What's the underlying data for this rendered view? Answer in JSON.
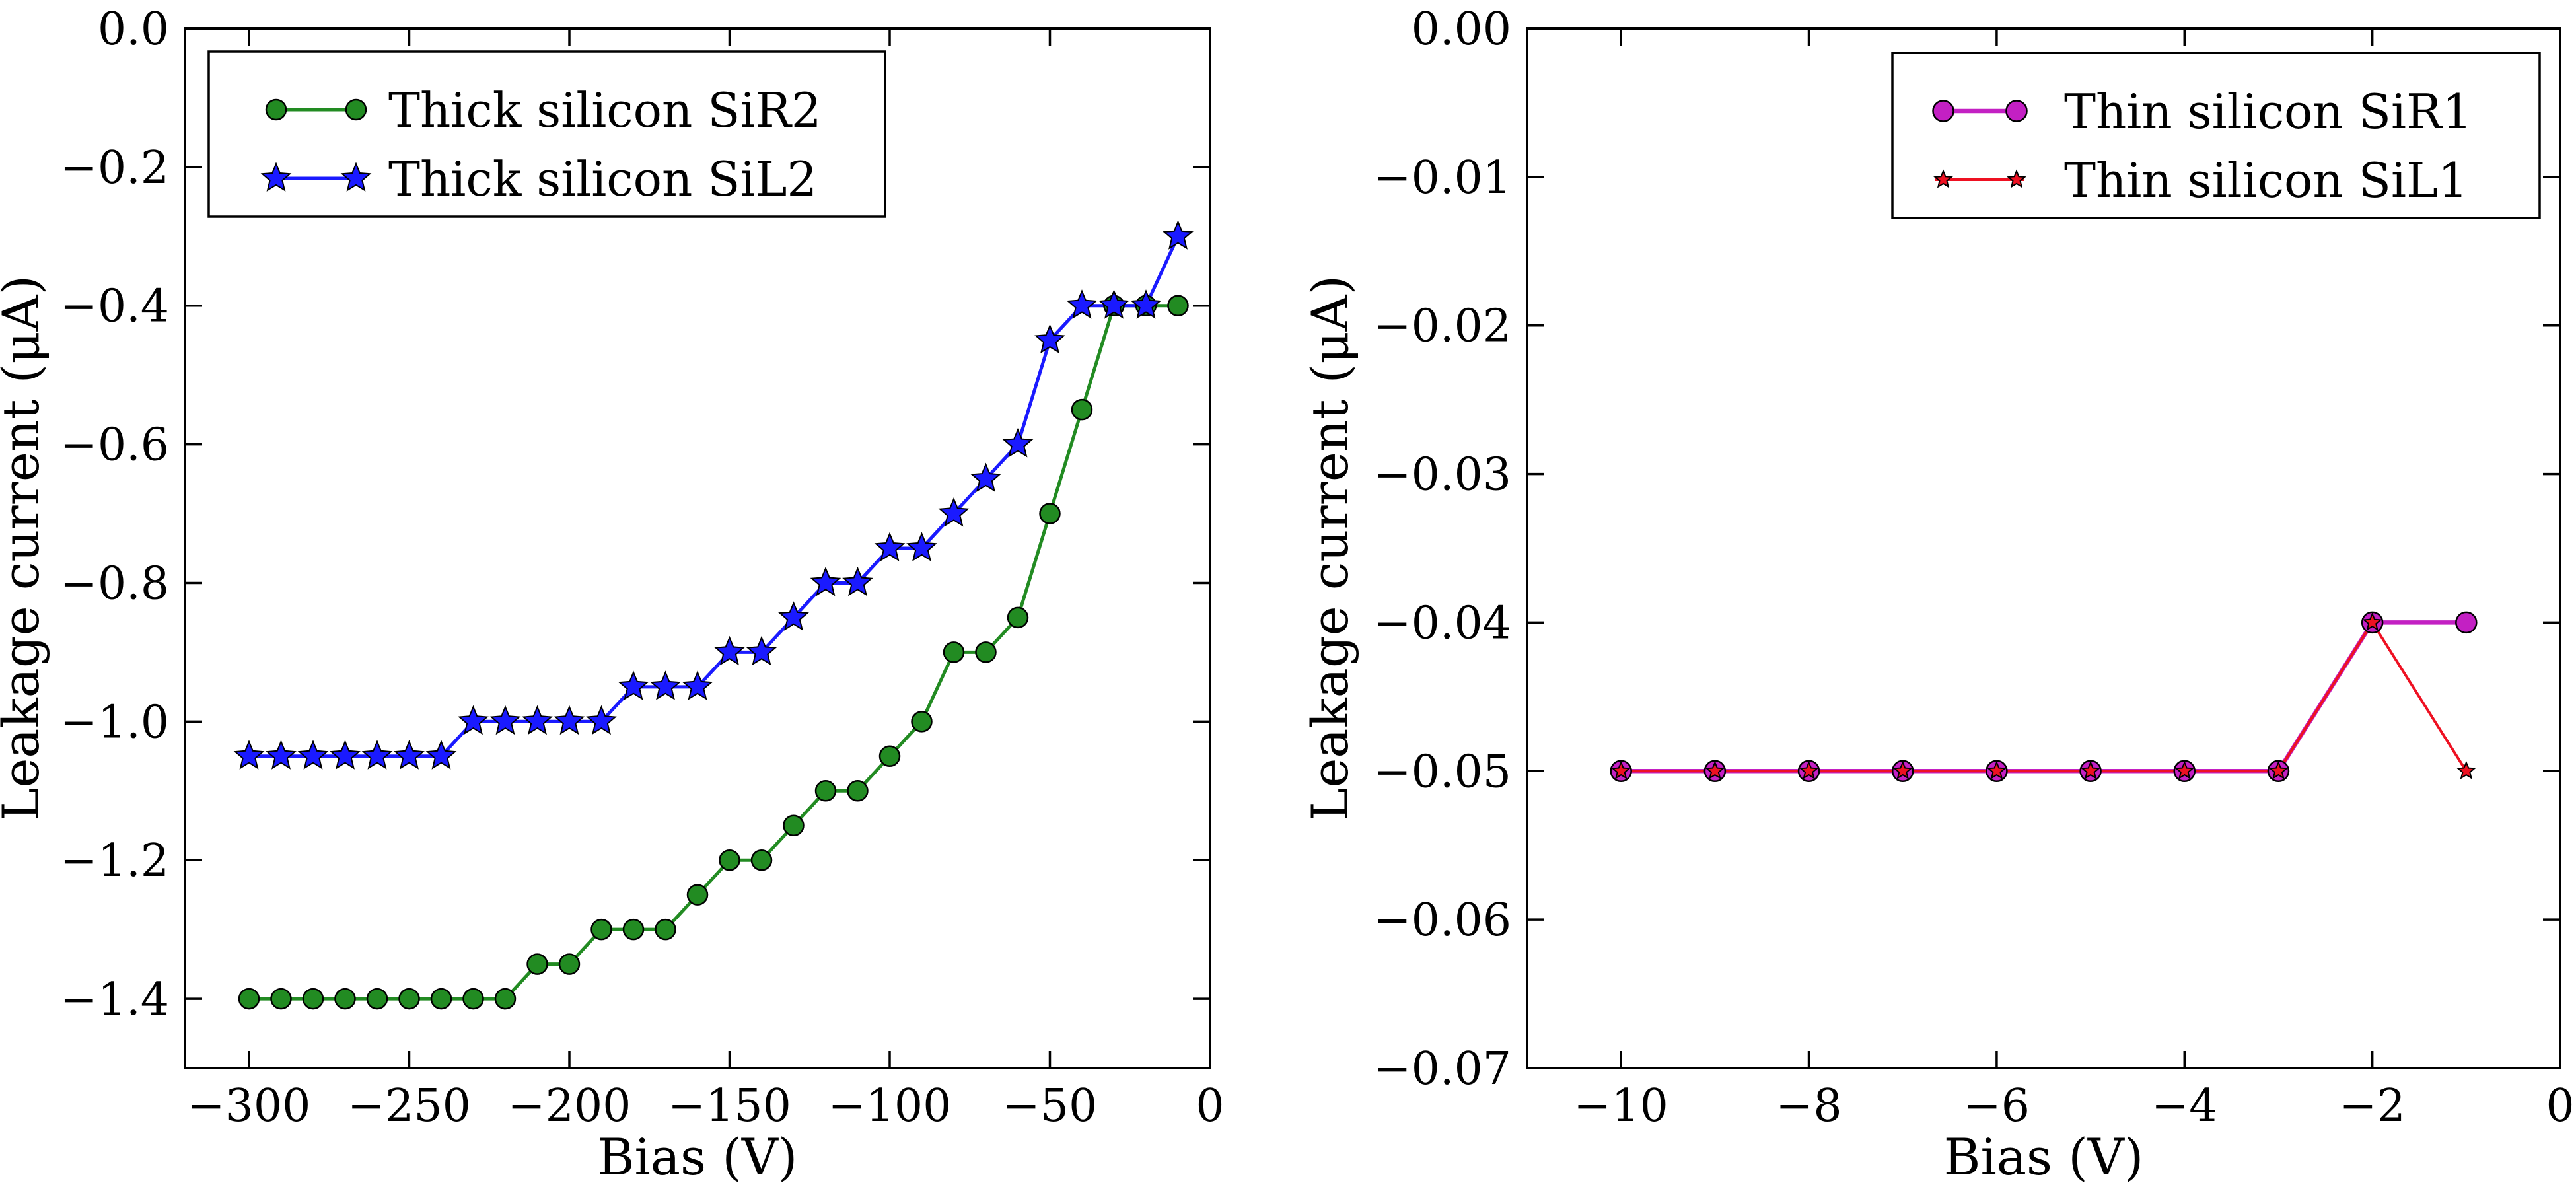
{
  "figure": {
    "background": "#ffffff",
    "axis_color": "#000000"
  },
  "chart_data": [
    {
      "id": "left",
      "type": "line",
      "title": "",
      "xlabel": "Bias (V)",
      "ylabel": "Leakage current (μA)",
      "xlim": [
        -320,
        0
      ],
      "ylim": [
        -1.5,
        0
      ],
      "grid": false,
      "legend_position": "upper-left",
      "xticks": {
        "values": [
          -300,
          -250,
          -200,
          -150,
          -100,
          -50,
          0
        ],
        "labels": [
          "−300",
          "−250",
          "−200",
          "−150",
          "−100",
          "−50",
          "0"
        ]
      },
      "yticks": {
        "values": [
          0,
          -0.2,
          -0.4,
          -0.6,
          -0.8,
          -1.0,
          -1.2,
          -1.4
        ],
        "labels": [
          "0.0",
          "−0.2",
          "−0.4",
          "−0.6",
          "−0.8",
          "−1.0",
          "−1.2",
          "−1.4"
        ]
      },
      "x": [
        -300,
        -290,
        -280,
        -270,
        -260,
        -250,
        -240,
        -230,
        -220,
        -210,
        -200,
        -190,
        -180,
        -170,
        -160,
        -150,
        -140,
        -130,
        -120,
        -110,
        -100,
        -90,
        -80,
        -70,
        -60,
        -50,
        -40,
        -30,
        -20,
        -10
      ],
      "series": [
        {
          "name": "Thick silicon SiR2",
          "marker": "circle",
          "color": "#228b22",
          "line_width": 5,
          "marker_size": 15,
          "y": [
            -1.4,
            -1.4,
            -1.4,
            -1.4,
            -1.4,
            -1.4,
            -1.4,
            -1.4,
            -1.4,
            -1.35,
            -1.35,
            -1.3,
            -1.3,
            -1.3,
            -1.25,
            -1.2,
            -1.2,
            -1.15,
            -1.1,
            -1.1,
            -1.05,
            -1.0,
            -0.9,
            -0.9,
            -0.85,
            -0.7,
            -0.55,
            -0.4,
            -0.4,
            -0.4
          ]
        },
        {
          "name": "Thick silicon SiL2",
          "marker": "star",
          "color": "#1a1aff",
          "line_width": 5,
          "marker_size": 22,
          "y": [
            -1.05,
            -1.05,
            -1.05,
            -1.05,
            -1.05,
            -1.05,
            -1.05,
            -1.0,
            -1.0,
            -1.0,
            -1.0,
            -1.0,
            -0.95,
            -0.95,
            -0.95,
            -0.9,
            -0.9,
            -0.85,
            -0.8,
            -0.8,
            -0.75,
            -0.75,
            -0.7,
            -0.65,
            -0.6,
            -0.45,
            -0.4,
            -0.4,
            -0.4,
            -0.3
          ]
        }
      ]
    },
    {
      "id": "right",
      "type": "line",
      "title": "",
      "xlabel": "Bias (V)",
      "ylabel": "Leakage current (μA)",
      "xlim": [
        -11,
        0
      ],
      "ylim": [
        -0.07,
        0
      ],
      "grid": false,
      "legend_position": "upper-right",
      "xticks": {
        "values": [
          -10,
          -8,
          -6,
          -4,
          -2,
          0
        ],
        "labels": [
          "−10",
          "−8",
          "−6",
          "−4",
          "−2",
          "0"
        ]
      },
      "yticks": {
        "values": [
          0,
          -0.01,
          -0.02,
          -0.03,
          -0.04,
          -0.05,
          -0.06,
          -0.07
        ],
        "labels": [
          "0.00",
          "−0.01",
          "−0.02",
          "−0.03",
          "−0.04",
          "−0.05",
          "−0.06",
          "−0.07"
        ]
      },
      "x": [
        -10,
        -9,
        -8,
        -7,
        -6,
        -5,
        -4,
        -3,
        -2,
        -1
      ],
      "series": [
        {
          "name": "Thin silicon SiR1",
          "marker": "circle",
          "color": "#c320c3",
          "line_width": 6.5,
          "marker_size": 15.5,
          "y": [
            -0.05,
            -0.05,
            -0.05,
            -0.05,
            -0.05,
            -0.05,
            -0.05,
            -0.05,
            -0.04,
            -0.04
          ]
        },
        {
          "name": "Thin silicon SiL1",
          "marker": "star",
          "color": "#ee1122",
          "line_width": 4,
          "marker_size": 13,
          "y": [
            -0.05,
            -0.05,
            -0.05,
            -0.05,
            -0.05,
            -0.05,
            -0.05,
            -0.05,
            -0.04,
            -0.05
          ]
        }
      ]
    }
  ]
}
